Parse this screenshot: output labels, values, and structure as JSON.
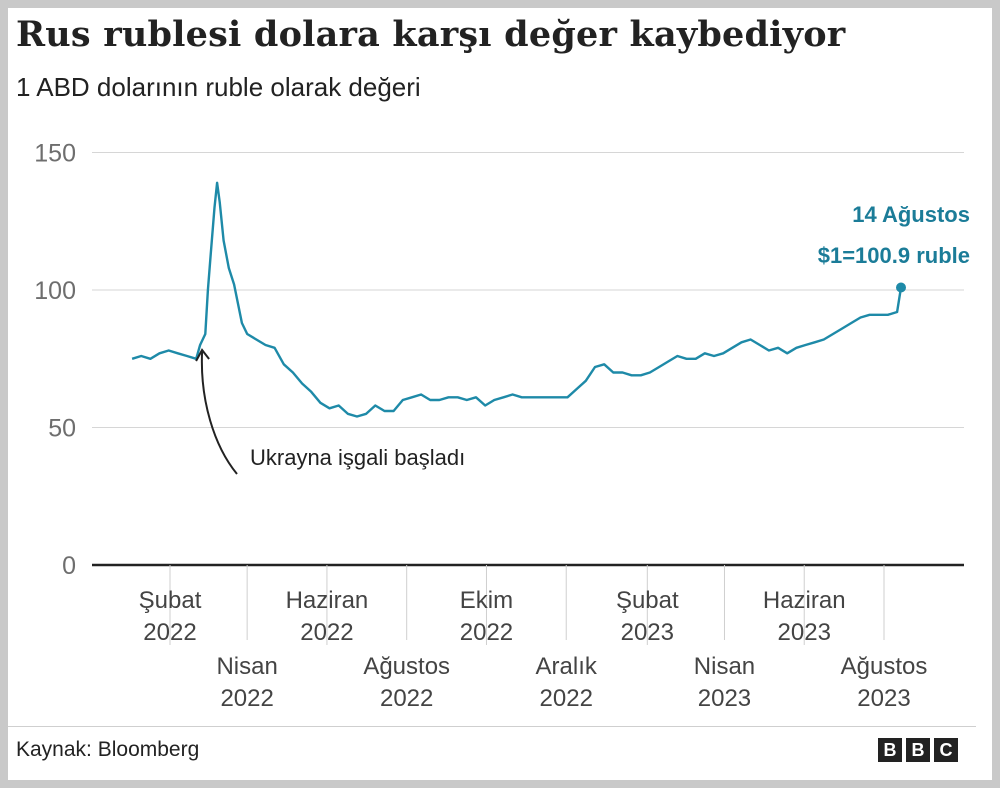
{
  "title": "Rus rublesi dolara karşı değer kaybediyor",
  "subtitle": "1 ABD dolarının ruble olarak değeri",
  "source": "Kaynak: Bloomberg",
  "brand": [
    "B",
    "B",
    "C"
  ],
  "colors": {
    "line": "#1e8aa8",
    "label": "#1b7c98",
    "grid": "#d6d6d6",
    "axis": "#222222",
    "text": "#222222"
  },
  "chart_data": {
    "type": "line",
    "title": "Rus rublesi dolara karşı değer kaybediyor",
    "subtitle": "1 ABD dolarının ruble olarak değeri",
    "xlabel": "",
    "ylabel": "",
    "ylim": [
      0,
      150
    ],
    "y_ticks": [
      0,
      50,
      100,
      150
    ],
    "grid": true,
    "legend": "none",
    "x_ticks": [
      {
        "line1": "Şubat",
        "line2": "2022",
        "date": "2022-02-01",
        "row": 1
      },
      {
        "line1": "Nisan",
        "line2": "2022",
        "date": "2022-04-01",
        "row": 2
      },
      {
        "line1": "Haziran",
        "line2": "2022",
        "date": "2022-06-01",
        "row": 1
      },
      {
        "line1": "Ağustos",
        "line2": "2022",
        "date": "2022-08-01",
        "row": 2
      },
      {
        "line1": "Ekim",
        "line2": "2022",
        "date": "2022-10-01",
        "row": 1
      },
      {
        "line1": "Aralık",
        "line2": "2022",
        "date": "2022-12-01",
        "row": 2
      },
      {
        "line1": "Şubat",
        "line2": "2023",
        "date": "2023-02-01",
        "row": 1
      },
      {
        "line1": "Nisan",
        "line2": "2023",
        "date": "2023-04-01",
        "row": 2
      },
      {
        "line1": "Haziran",
        "line2": "2023",
        "date": "2023-06-01",
        "row": 1
      },
      {
        "line1": "Ağustos",
        "line2": "2023",
        "date": "2023-08-01",
        "row": 2
      }
    ],
    "series": [
      {
        "x": [
          "2022-01-03",
          "2022-01-10",
          "2022-01-17",
          "2022-01-24",
          "2022-01-31",
          "2022-02-07",
          "2022-02-14",
          "2022-02-21",
          "2022-02-24",
          "2022-02-28",
          "2022-03-02",
          "2022-03-04",
          "2022-03-07",
          "2022-03-09",
          "2022-03-11",
          "2022-03-14",
          "2022-03-18",
          "2022-03-22",
          "2022-03-25",
          "2022-03-28",
          "2022-04-01",
          "2022-04-08",
          "2022-04-15",
          "2022-04-22",
          "2022-04-29",
          "2022-05-06",
          "2022-05-13",
          "2022-05-20",
          "2022-05-27",
          "2022-06-03",
          "2022-06-10",
          "2022-06-17",
          "2022-06-24",
          "2022-07-01",
          "2022-07-08",
          "2022-07-15",
          "2022-07-22",
          "2022-07-29",
          "2022-08-05",
          "2022-08-12",
          "2022-08-19",
          "2022-08-26",
          "2022-09-02",
          "2022-09-09",
          "2022-09-16",
          "2022-09-23",
          "2022-09-30",
          "2022-10-07",
          "2022-10-14",
          "2022-10-21",
          "2022-10-28",
          "2022-11-04",
          "2022-11-11",
          "2022-11-18",
          "2022-11-25",
          "2022-12-02",
          "2022-12-09",
          "2022-12-16",
          "2022-12-23",
          "2022-12-30",
          "2023-01-06",
          "2023-01-13",
          "2023-01-20",
          "2023-01-27",
          "2023-02-03",
          "2023-02-10",
          "2023-02-17",
          "2023-02-24",
          "2023-03-03",
          "2023-03-10",
          "2023-03-17",
          "2023-03-24",
          "2023-03-31",
          "2023-04-07",
          "2023-04-14",
          "2023-04-21",
          "2023-04-28",
          "2023-05-05",
          "2023-05-12",
          "2023-05-19",
          "2023-05-26",
          "2023-06-02",
          "2023-06-09",
          "2023-06-16",
          "2023-06-23",
          "2023-06-30",
          "2023-07-07",
          "2023-07-14",
          "2023-07-21",
          "2023-07-28",
          "2023-08-04",
          "2023-08-11",
          "2023-08-14"
        ],
        "values": [
          75,
          76,
          75,
          77,
          78,
          77,
          76,
          75,
          80,
          84,
          100,
          112,
          130,
          139,
          132,
          118,
          108,
          102,
          95,
          88,
          84,
          82,
          80,
          79,
          73,
          70,
          66,
          63,
          59,
          57,
          58,
          55,
          54,
          55,
          58,
          56,
          56,
          60,
          61,
          62,
          60,
          60,
          61,
          61,
          60,
          61,
          58,
          60,
          61,
          62,
          61,
          61,
          61,
          61,
          61,
          61,
          64,
          67,
          72,
          73,
          70,
          70,
          69,
          69,
          70,
          72,
          74,
          76,
          75,
          75,
          77,
          76,
          77,
          79,
          81,
          82,
          80,
          78,
          79,
          77,
          79,
          80,
          81,
          82,
          84,
          86,
          88,
          90,
          91,
          91,
          91,
          92,
          100.9
        ]
      }
    ],
    "annotations": [
      {
        "text": "Ukrayna işgali başladı",
        "date": "2022-02-24"
      },
      {
        "line1": "14 Ağustos",
        "line2": "$1=100.9 ruble",
        "date": "2023-08-14",
        "value": 100.9
      }
    ]
  }
}
